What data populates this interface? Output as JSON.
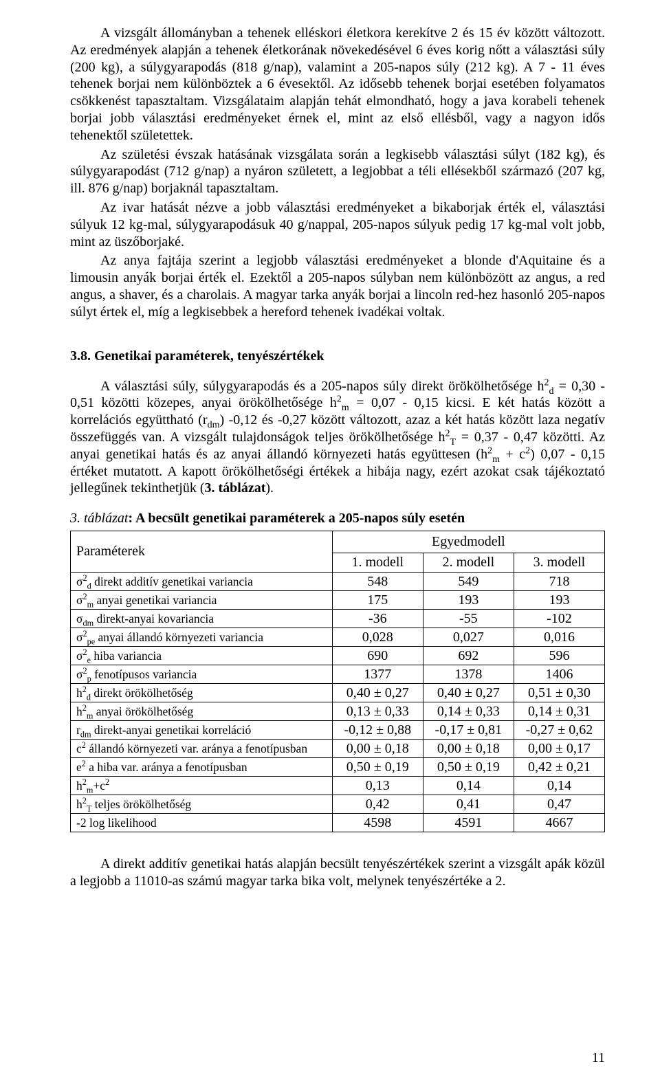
{
  "paragraphs": {
    "p1": "A vizsgált állományban a tehenek elléskori életkora kerekítve 2 és 15 év között változott. Az eredmények alapján a tehenek életkorának növekedésével 6 éves korig nőtt a választási súly (200 kg), a súlygyarapodás (818 g/nap), valamint a 205-napos súly (212 kg). A 7 - 11 éves tehenek borjai nem különböztek a 6 évesektől. Az idősebb tehenek borjai esetében folyamatos csökkenést tapasztaltam. Vizsgálataim alapján tehát elmondható, hogy a java korabeli tehenek borjai jobb választási eredményeket érnek el, mint az első ellésből, vagy a nagyon idős tehenektől születettek.",
    "p2": "Az születési évszak hatásának vizsgálata során a legkisebb választási súlyt (182 kg), és súlygyarapodást (712 g/nap) a nyáron született, a legjobbat a téli ellésekből származó (207 kg, ill. 876 g/nap) borjaknál tapasztaltam.",
    "p3": "Az ivar hatását nézve a jobb választási eredményeket a bikaborjak érték el, választási súlyuk 12 kg-mal, súlygyarapodásuk 40 g/nappal, 205-napos súlyuk pedig 17 kg-mal volt jobb, mint az üszőborjaké.",
    "p4": "Az anya fajtája szerint a legjobb választási eredményeket a blonde d'Aquitaine és a limousin anyák borjai érték el. Ezektől a 205-napos súlyban nem különbözött az angus, a red angus, a shaver, és a charolais. A magyar tarka anyák borjai a lincoln red-hez hasonló 205-napos súlyt értek el, míg a legkisebbek a hereford tehenek ivadékai voltak.",
    "p5a": "A választási súly, súlygyarapodás és a 205-napos súly direkt örökölhetősége h",
    "p5b": " = 0,30 - 0,51 közötti közepes, anyai örökölhetősége h",
    "p5c": " = 0,07 - 0,15 kicsi. E két hatás között a korrelációs együttható (r",
    "p5d": ") -0,12 és -0,27 között változott, azaz a két hatás között laza negatív összefüggés van. A vizsgált tulajdonságok teljes örökölhetősége h",
    "p5e": " = 0,37 - 0,47 közötti. Az anyai genetikai hatás és az anyai állandó környezeti hatás együttesen (h",
    "p5f": " + c",
    "p5g": ") 0,07 - 0,15 értéket mutatott. A kapott örökölhetőségi értékek a hibája nagy, ezért azokat csak tájékoztató jellegűnek tekinthetjük (",
    "p5h": "3. táblázat",
    "p5i": ").",
    "p6": "A direkt additív genetikai hatás alapján becsült tenyészértékek szerint a vizsgált apák közül a legjobb a 11010-as számú magyar tarka bika volt, melynek tenyészértéke a 2."
  },
  "section_title": "3.8. Genetikai paraméterek, tenyészértékek",
  "table_caption_prefix": "3. táblázat",
  "table_caption_rest": ": A becsült genetikai paraméterek a 205-napos súly esetén",
  "headers": {
    "param": "Paraméterek",
    "egyedmodell": "Egyedmodell",
    "m1": "1. modell",
    "m2": "2. modell",
    "m3": "3. modell"
  },
  "rows": [
    {
      "label_html": "σ<sup>2</sup><sub>d</sub> direkt additív genetikai variancia",
      "c1": "548",
      "c2": "549",
      "c3": "718"
    },
    {
      "label_html": "σ<sup>2</sup><sub>m</sub> anyai genetikai variancia",
      "c1": "175",
      "c2": "193",
      "c3": "193"
    },
    {
      "label_html": "σ<sub>dm</sub> direkt-anyai kovariancia",
      "c1": "-36",
      "c2": "-55",
      "c3": "-102"
    },
    {
      "label_html": "σ<sup>2</sup><sub>pe</sub> anyai állandó környezeti variancia",
      "c1": "0,028",
      "c2": "0,027",
      "c3": "0,016"
    },
    {
      "label_html": "σ<sup>2</sup><sub>e</sub> hiba variancia",
      "c1": "690",
      "c2": "692",
      "c3": "596"
    },
    {
      "label_html": "σ<sup>2</sup><sub>p</sub> fenotípusos variancia",
      "c1": "1377",
      "c2": "1378",
      "c3": "1406"
    },
    {
      "label_html": "h<sup>2</sup><sub>d</sub> direkt örökölhetőség",
      "c1": "0,40 ± 0,27",
      "c2": "0,40 ± 0,27",
      "c3": "0,51 ± 0,30"
    },
    {
      "label_html": "h<sup>2</sup><sub>m</sub> anyai örökölhetőség",
      "c1": "0,13 ± 0,33",
      "c2": "0,14 ± 0,33",
      "c3": "0,14 ± 0,31"
    },
    {
      "label_html": "r<sub>dm</sub> direkt-anyai genetikai korreláció",
      "c1": "-0,12 ± 0,88",
      "c2": "-0,17 ± 0,81",
      "c3": "-0,27 ± 0,62"
    },
    {
      "label_html": "c<sup>2</sup> állandó környezeti var. aránya a fenotípusban",
      "c1": "0,00 ± 0,18",
      "c2": "0,00 ± 0,18",
      "c3": "0,00 ± 0,17"
    },
    {
      "label_html": "e<sup>2</sup> a hiba var. aránya a fenotípusban",
      "c1": "0,50 ± 0,19",
      "c2": "0,50 ± 0,19",
      "c3": "0,42 ± 0,21"
    },
    {
      "label_html": "h<sup>2</sup><sub>m</sub>+c<sup>2</sup>",
      "c1": "0,13",
      "c2": "0,14",
      "c3": "0,14"
    },
    {
      "label_html": "h<sup>2</sup><sub>T</sub> teljes örökölhetőség",
      "c1": "0,42",
      "c2": "0,41",
      "c3": "0,47"
    },
    {
      "label_html": "-2 log likelihood",
      "c1": "4598",
      "c2": "4591",
      "c3": "4667"
    }
  ],
  "page_number": "11",
  "colors": {
    "text": "#000000",
    "bg": "#ffffff",
    "border": "#000000"
  }
}
